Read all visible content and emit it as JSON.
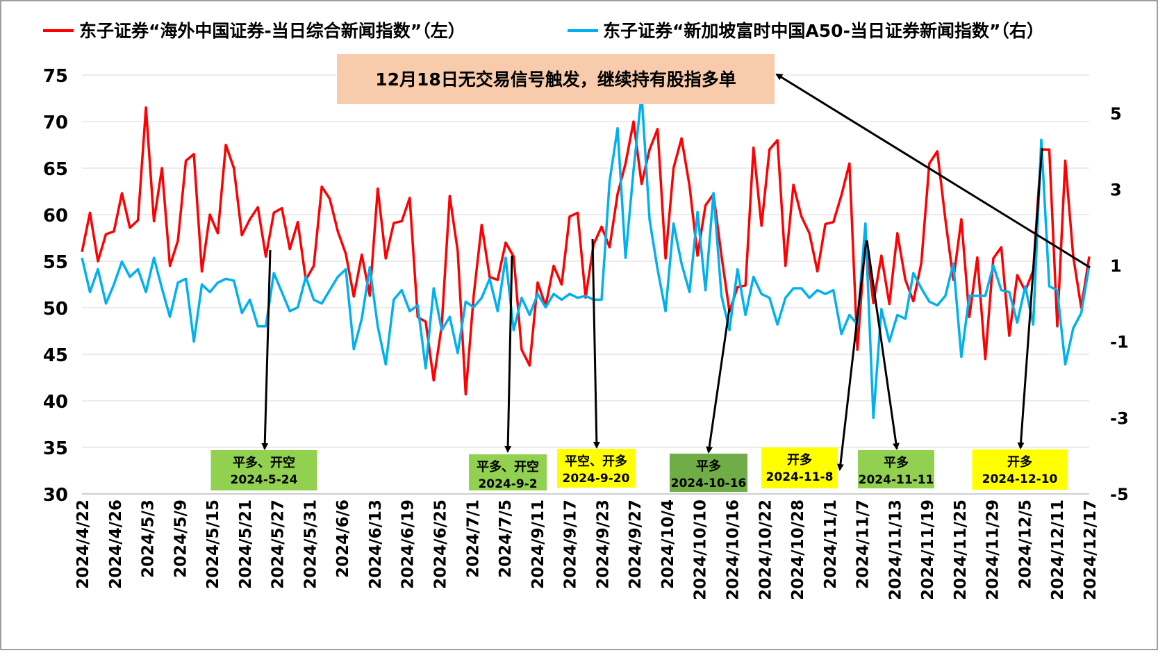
{
  "legend": {
    "red_label": "东子证券“海外中国证券-当日综合新闻指数”（左）",
    "blue_label": "东子证券“新加坡富时中国A50-当日证券新闻指数”（右）"
  },
  "callout": {
    "text": "12月18日无交易信号触发，继续持有股指多单"
  },
  "annotations": [
    {
      "line1": "平多、开空",
      "line2": "2024-5-24",
      "color": "#92d050"
    },
    {
      "line1": "平多、开空",
      "line2": "2024-9-2",
      "color": "#92d050"
    },
    {
      "line1": "平空、开多",
      "line2": "2024-9-20",
      "color": "#ffff00"
    },
    {
      "line1": "平多",
      "line2": "2024-10-16",
      "color": "#70ad47"
    },
    {
      "line1": "开多",
      "line2": "2024-11-8",
      "color": "#ffff00"
    },
    {
      "line1": "平多",
      "line2": "2024-11-11",
      "color": "#92d050"
    },
    {
      "line1": "开多",
      "line2": "2024-12-10",
      "color": "#ffff00"
    }
  ],
  "chart_data": {
    "type": "line",
    "title": "",
    "xlabel": "",
    "ylabel_left": "",
    "ylabel_right": "",
    "y_left_range": [
      30,
      75
    ],
    "y_left_ticks": [
      "30",
      "35",
      "40",
      "45",
      "50",
      "55",
      "60",
      "65",
      "70",
      "75"
    ],
    "y_right_range": [
      -5,
      6
    ],
    "y_right_ticks": [
      "-5",
      "-3",
      "-1",
      "1",
      "3",
      "5"
    ],
    "x_tick_labels": [
      "2024/4/22",
      "2024/4/26",
      "2024/5/3",
      "2024/5/9",
      "2024/5/15",
      "2024/5/21",
      "2024/5/27",
      "2024/5/31",
      "2024/6/6",
      "2024/6/13",
      "2024/6/19",
      "2024/6/25",
      "2024/7/1",
      "2024/7/5",
      "2024/9/11",
      "2024/9/17",
      "2024/9/23",
      "2024/9/27",
      "2024/10/4",
      "2024/10/10",
      "2024/10/16",
      "2024/10/22",
      "2024/10/28",
      "2024/11/1",
      "2024/11/7",
      "2024/11/13",
      "2024/11/19",
      "2024/11/25",
      "2024/11/29",
      "2024/12/5",
      "2024/12/11",
      "2024/12/17"
    ],
    "grid": true,
    "legend_position": "top",
    "series": [
      {
        "name": "东子证券“海外中国证券-当日综合新闻指数”（左）",
        "axis": "left",
        "color": "#ff0000",
        "values": [
          56,
          60.2,
          55,
          57.9,
          58.2,
          62.3,
          58.6,
          59.4,
          71.5,
          59.3,
          65,
          54.5,
          57.2,
          65.8,
          66.5,
          53.9,
          60,
          58,
          67.5,
          65,
          57.8,
          59.5,
          60.8,
          55.5,
          60.2,
          60.7,
          56.3,
          59.2,
          53,
          54.5,
          63,
          61.7,
          58.2,
          55.8,
          51.2,
          55.7,
          51.3,
          62.8,
          55.3,
          59.1,
          59.3,
          61.8,
          49,
          48.5,
          42.2,
          48.1,
          62,
          56.1,
          40.7,
          51.3,
          58.9,
          53.3,
          53,
          57,
          55.5,
          45.5,
          43.8,
          52.7,
          50.2,
          54.5,
          52.5,
          59.8,
          60.2,
          51.1,
          56.8,
          58.7,
          56.5,
          62.2,
          65.5,
          70,
          63.3,
          67,
          69.2,
          55.3,
          65,
          68.2,
          63.1,
          55.6,
          61,
          62.2,
          55.6,
          49.6,
          52.2,
          52.4,
          67.2,
          58.8,
          67,
          68,
          54.5,
          63.2,
          59.8,
          58,
          53.9,
          59,
          59.2,
          62.1,
          65.5,
          45.5,
          57.5,
          50.5,
          55.6,
          50.4,
          58,
          53,
          50.7,
          54.8,
          65.5,
          66.8,
          59.5,
          53,
          59.5,
          49,
          55.4,
          44.5,
          55.3,
          56.5,
          47,
          53.5,
          51.8,
          54,
          67,
          67,
          48,
          65.8,
          55.5,
          50,
          55.5
        ],
        "markers": false
      },
      {
        "name": "东子证券“新加坡富时中国A50-当日证券新闻指数”（右）",
        "axis": "right",
        "color": "#00b0f0",
        "values": [
          1.2,
          0.3,
          0.9,
          0,
          0.5,
          1.1,
          0.7,
          0.9,
          0.3,
          1.2,
          0.4,
          -0.35,
          0.55,
          0.65,
          -1,
          0.5,
          0.3,
          0.55,
          0.65,
          0.6,
          -0.25,
          0.1,
          -0.6,
          -0.6,
          0.8,
          0.3,
          -0.2,
          -0.1,
          0.7,
          0.1,
          0,
          0.35,
          0.7,
          0.9,
          -1.2,
          -0.4,
          0.95,
          -0.6,
          -1.6,
          0.1,
          0.35,
          -0.2,
          -0.05,
          -1.7,
          0.4,
          -0.7,
          -0.35,
          -1.3,
          0.05,
          -0.1,
          0.15,
          0.65,
          -0.2,
          1.2,
          -0.7,
          0.15,
          -0.3,
          0.25,
          -0.1,
          0.25,
          0.1,
          0.25,
          0.15,
          0.2,
          0.1,
          0.1,
          3.2,
          4.6,
          1.2,
          3.5,
          5.5,
          2.2,
          0.9,
          -0.2,
          2.1,
          1.05,
          0.3,
          2.4,
          0.35,
          2.9,
          0.2,
          -0.7,
          0.9,
          -0.3,
          0.7,
          0.25,
          0.15,
          -0.55,
          0.15,
          0.4,
          0.4,
          0.15,
          0.35,
          0.25,
          0.35,
          -0.8,
          -0.3,
          -0.55,
          2.1,
          -3,
          -0.15,
          -1,
          -0.3,
          -0.4,
          0.8,
          0.4,
          0.05,
          -0.05,
          0.2,
          1.05,
          -1.4,
          0.2,
          0.2,
          0.2,
          1,
          0.35,
          0.3,
          -0.5,
          0.45,
          -0.55,
          4.3,
          0.45,
          0.35,
          -1.6,
          -0.65,
          -0.25,
          1
        ]
      }
    ]
  }
}
